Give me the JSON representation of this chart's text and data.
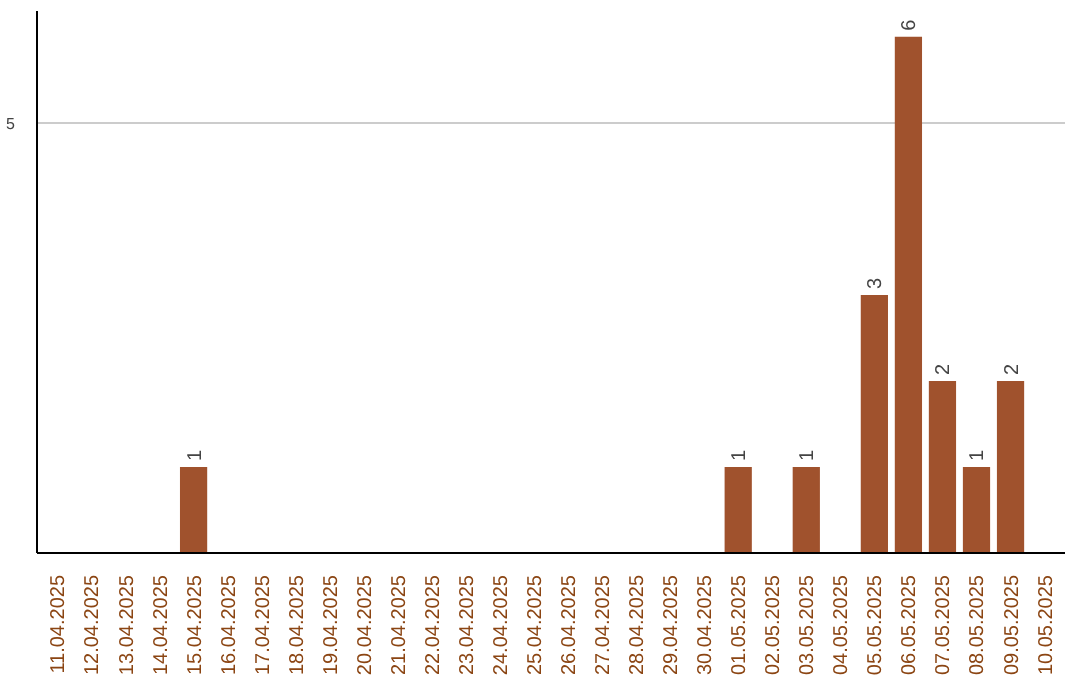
{
  "chart_data": {
    "type": "bar",
    "categories": [
      "11.04.2025",
      "12.04.2025",
      "13.04.2025",
      "14.04.2025",
      "15.04.2025",
      "16.04.2025",
      "17.04.2025",
      "18.04.2025",
      "19.04.2025",
      "20.04.2025",
      "21.04.2025",
      "22.04.2025",
      "23.04.2025",
      "24.04.2025",
      "25.04.2025",
      "26.04.2025",
      "27.04.2025",
      "28.04.2025",
      "29.04.2025",
      "30.04.2025",
      "01.05.2025",
      "02.05.2025",
      "03.05.2025",
      "04.05.2025",
      "05.05.2025",
      "06.05.2025",
      "07.05.2025",
      "08.05.2025",
      "09.05.2025",
      "10.05.2025"
    ],
    "values": [
      0,
      0,
      0,
      0,
      1,
      0,
      0,
      0,
      0,
      0,
      0,
      0,
      0,
      0,
      0,
      0,
      0,
      0,
      0,
      0,
      1,
      0,
      1,
      0,
      3,
      6,
      2,
      1,
      2,
      0
    ],
    "value_labels": [
      null,
      null,
      null,
      null,
      "1",
      null,
      null,
      null,
      null,
      null,
      null,
      null,
      null,
      null,
      null,
      null,
      null,
      null,
      null,
      null,
      "1",
      null,
      "1",
      null,
      "3",
      "6",
      "2",
      "1",
      "2",
      null
    ],
    "color": "#a0522d",
    "ylim": [
      0,
      6.3
    ],
    "yticks": [
      5
    ],
    "grid": "y"
  }
}
